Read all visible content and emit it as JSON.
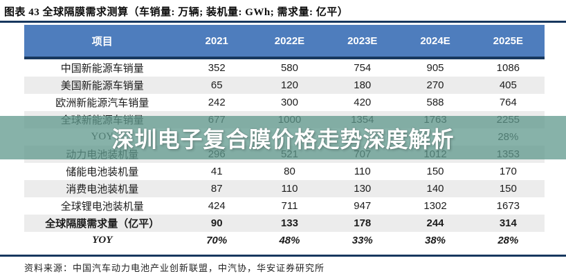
{
  "title": "图表 43 全球隔膜需求测算（车销量: 万辆; 装机量: GWh; 需求量: 亿平）",
  "source": "资料来源：中国汽车动力电池产业创新联盟，中汽协，华安证券研究所",
  "watermark": {
    "text": "深圳电子复合膜价格走势深度解析",
    "band_color": "#5f988c",
    "text_color": "#ffffff"
  },
  "colors": {
    "header_blue": "#4e7dbd",
    "border_navy": "#17375e",
    "zebra_gray": "#ececec",
    "body_text": "#1c1c1c"
  },
  "chart_data": {
    "type": "table",
    "title": "全球隔膜需求测算",
    "units": {
      "车销量": "万辆",
      "装机量": "GWh",
      "需求量": "亿平"
    },
    "categories": [
      "2021",
      "2022E",
      "2023E",
      "2024E",
      "2025E"
    ],
    "series": [
      {
        "name": "中国新能源车销量",
        "values": [
          "352",
          "580",
          "754",
          "905",
          "1086"
        ]
      },
      {
        "name": "美国新能源车销量",
        "values": [
          "65",
          "120",
          "180",
          "270",
          "405"
        ]
      },
      {
        "name": "欧洲新能源汽车销量",
        "values": [
          "242",
          "300",
          "420",
          "588",
          "764"
        ]
      },
      {
        "name": "全球新能源车销量",
        "values": [
          "677",
          "1000",
          "1354",
          "1763",
          "2255"
        ]
      },
      {
        "name": "YOY",
        "values": [
          "",
          "",
          "",
          "",
          "28%"
        ]
      },
      {
        "name": "动力电池装机量",
        "values": [
          "296",
          "521",
          "707",
          "1012",
          "1353"
        ]
      },
      {
        "name": "储能电池装机量",
        "values": [
          "41",
          "80",
          "110",
          "150",
          "170"
        ]
      },
      {
        "name": "消费电池装机量",
        "values": [
          "87",
          "110",
          "130",
          "140",
          "150"
        ]
      },
      {
        "name": "全球锂电池装机量",
        "values": [
          "424",
          "711",
          "947",
          "1302",
          "1673"
        ]
      },
      {
        "name": "全球隔膜需求量（亿平）",
        "values": [
          "90",
          "133",
          "178",
          "244",
          "314"
        ]
      },
      {
        "name": "YOY",
        "values": [
          "70%",
          "48%",
          "33%",
          "38%",
          "28%"
        ]
      }
    ]
  },
  "table": {
    "header": [
      "项目",
      "2021",
      "2022E",
      "2023E",
      "2024E",
      "2025E"
    ],
    "rows": [
      {
        "label": "中国新能源车销量",
        "values": [
          "352",
          "580",
          "754",
          "905",
          "1086"
        ],
        "bold": false,
        "italic": false
      },
      {
        "label": "美国新能源车销量",
        "values": [
          "65",
          "120",
          "180",
          "270",
          "405"
        ],
        "bold": false,
        "italic": false
      },
      {
        "label": "欧洲新能源汽车销量",
        "values": [
          "242",
          "300",
          "420",
          "588",
          "764"
        ],
        "bold": false,
        "italic": false
      },
      {
        "label": "全球新能源车销量",
        "values": [
          "677",
          "1000",
          "1354",
          "1763",
          "2255"
        ],
        "bold": false,
        "italic": false
      },
      {
        "label": "YOY",
        "values": [
          "",
          "",
          "",
          "",
          "28%"
        ],
        "bold": false,
        "italic": false
      },
      {
        "label": "动力电池装机量",
        "values": [
          "296",
          "521",
          "707",
          "1012",
          "1353"
        ],
        "bold": false,
        "italic": false
      },
      {
        "label": "储能电池装机量",
        "values": [
          "41",
          "80",
          "110",
          "150",
          "170"
        ],
        "bold": false,
        "italic": false
      },
      {
        "label": "消费电池装机量",
        "values": [
          "87",
          "110",
          "130",
          "140",
          "150"
        ],
        "bold": false,
        "italic": false
      },
      {
        "label": "全球锂电池装机量",
        "values": [
          "424",
          "711",
          "947",
          "1302",
          "1673"
        ],
        "bold": false,
        "italic": false
      },
      {
        "label": "全球隔膜需求量（亿平）",
        "values": [
          "90",
          "133",
          "178",
          "244",
          "314"
        ],
        "bold": true,
        "italic": false
      },
      {
        "label": "YOY",
        "values": [
          "70%",
          "48%",
          "33%",
          "38%",
          "28%"
        ],
        "bold": true,
        "italic": true
      }
    ]
  }
}
